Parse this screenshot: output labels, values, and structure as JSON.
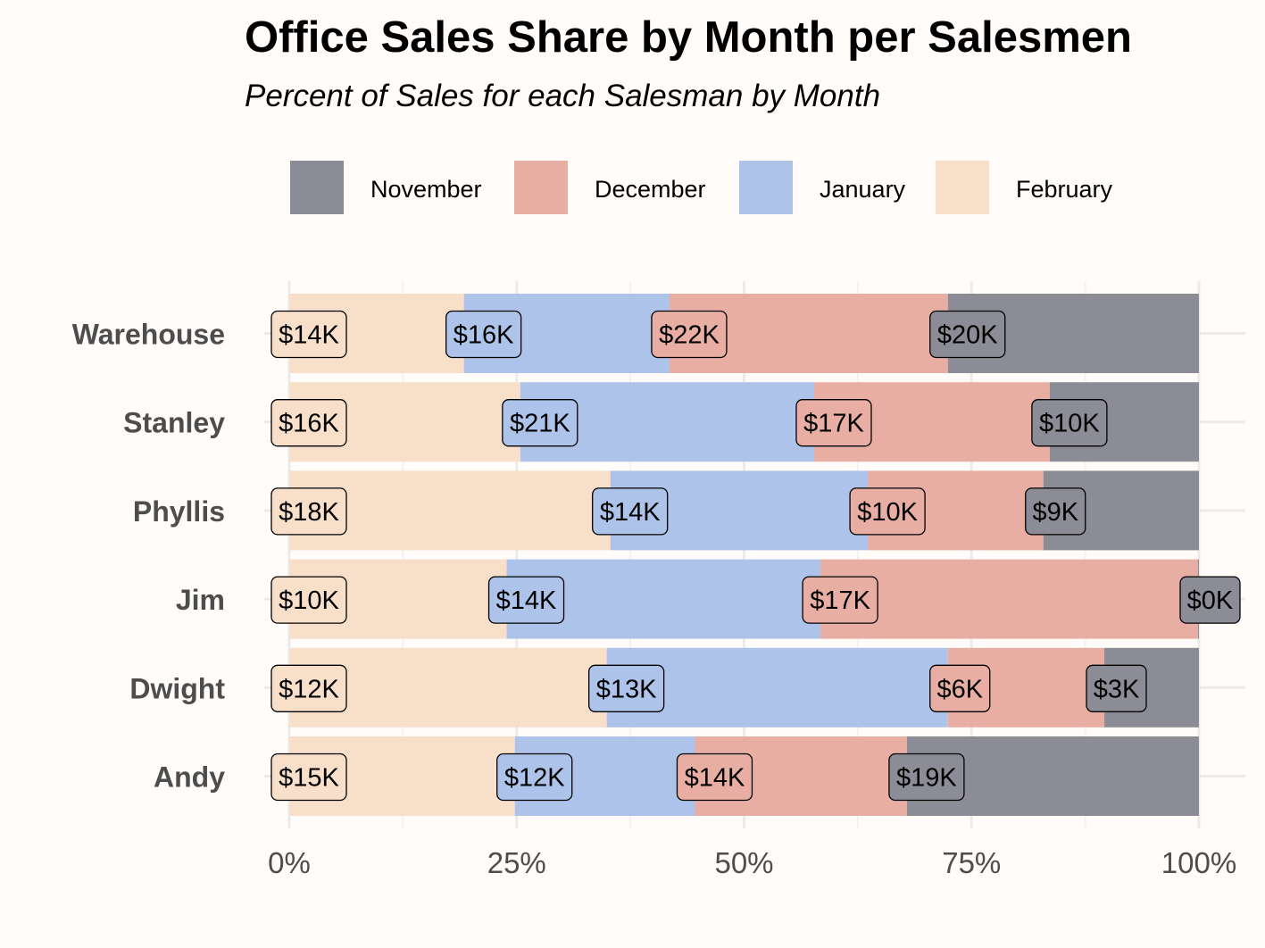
{
  "chart_data": {
    "type": "bar",
    "orientation": "horizontal",
    "stacked": "percent",
    "title": "Office Sales Share by Month per Salesmen",
    "subtitle": "Percent of Sales for each Salesman by Month",
    "categories": [
      "Warehouse",
      "Stanley",
      "Phyllis",
      "Jim",
      "Dwight",
      "Andy"
    ],
    "x_ticks": [
      "0%",
      "25%",
      "50%",
      "75%",
      "100%"
    ],
    "xlim": [
      0,
      100
    ],
    "legend_position": "top",
    "grid": true,
    "series": [
      {
        "name": "February",
        "color": "#f8dfca",
        "values": [
          19.2,
          25.4,
          35.3,
          23.9,
          34.9,
          24.8
        ],
        "labels": [
          "$14K",
          "$16K",
          "$18K",
          "$10K",
          "$12K",
          "$15K"
        ]
      },
      {
        "name": "January",
        "color": "#adc3ea",
        "values": [
          22.6,
          32.3,
          28.3,
          34.5,
          37.5,
          19.8
        ],
        "labels": [
          "$16K",
          "$21K",
          "$14K",
          "$14K",
          "$13K",
          "$12K"
        ]
      },
      {
        "name": "December",
        "color": "#e8aea3",
        "values": [
          30.6,
          25.9,
          19.3,
          41.5,
          17.2,
          23.3
        ],
        "labels": [
          "$22K",
          "$17K",
          "$10K",
          "$17K",
          "$6K",
          "$14K"
        ]
      },
      {
        "name": "November",
        "color": "#8c8c96",
        "values": [
          27.6,
          16.4,
          17.1,
          0.1,
          10.4,
          32.1
        ],
        "labels": [
          "$20K",
          "$10K",
          "$9K",
          "$0K",
          "$3K",
          "$19K"
        ]
      }
    ],
    "legend_order": [
      "November",
      "December",
      "January",
      "February"
    ]
  }
}
